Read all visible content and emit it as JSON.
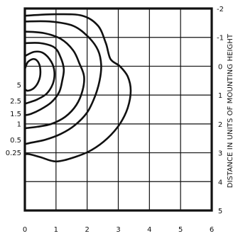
{
  "diagram": {
    "grid": {
      "columns": 6,
      "rows": 7
    },
    "x_axis": {
      "min": 0,
      "max": 6,
      "ticks": [
        {
          "value": 0,
          "label": "0"
        },
        {
          "value": 1,
          "label": "1"
        },
        {
          "value": 2,
          "label": "2"
        },
        {
          "value": 3,
          "label": "3"
        },
        {
          "value": 4,
          "label": "4"
        },
        {
          "value": 5,
          "label": "5"
        },
        {
          "value": 6,
          "label": "6"
        }
      ]
    },
    "y_axis": {
      "title": "DISTANCE IN UNITS OF MOUNTING HEIGHT",
      "min": -2,
      "max": 5,
      "ticks": [
        {
          "value": -2,
          "label": "-2"
        },
        {
          "value": -1,
          "label": "-1"
        },
        {
          "value": 0,
          "label": "0"
        },
        {
          "value": 1,
          "label": "1"
        },
        {
          "value": 2,
          "label": "2"
        },
        {
          "value": 3,
          "label": "3"
        },
        {
          "value": 4,
          "label": "4"
        },
        {
          "value": 5,
          "label": "5"
        }
      ]
    },
    "contours": [
      {
        "label": "5",
        "label_y": 0.65,
        "points": [
          [
            0,
            0.1
          ],
          [
            0.1,
            -0.15
          ],
          [
            0.3,
            -0.25
          ],
          [
            0.45,
            -0.1
          ],
          [
            0.5,
            0.2
          ],
          [
            0.45,
            0.5
          ],
          [
            0.3,
            0.75
          ],
          [
            0.1,
            0.85
          ],
          [
            0,
            0.8
          ]
        ]
      },
      {
        "label": "2.5",
        "label_y": 1.2,
        "points": [
          [
            0,
            -0.35
          ],
          [
            0.3,
            -0.5
          ],
          [
            0.6,
            -0.45
          ],
          [
            0.85,
            -0.15
          ],
          [
            0.95,
            0.2
          ],
          [
            0.9,
            0.6
          ],
          [
            0.7,
            0.95
          ],
          [
            0.4,
            1.15
          ],
          [
            0.15,
            1.25
          ],
          [
            0,
            1.3
          ]
        ]
      },
      {
        "label": "1.5",
        "label_y": 1.65,
        "points": [
          [
            0,
            -0.8
          ],
          [
            0.5,
            -0.8
          ],
          [
            0.95,
            -0.65
          ],
          [
            1.15,
            -0.3
          ],
          [
            1.25,
            0.1
          ],
          [
            1.2,
            0.5
          ],
          [
            1.1,
            0.9
          ],
          [
            0.85,
            1.25
          ],
          [
            0.5,
            1.5
          ],
          [
            0.2,
            1.65
          ],
          [
            0,
            1.7
          ]
        ]
      },
      {
        "label": "1",
        "label_y": 2.0,
        "points": [
          [
            0,
            -1.2
          ],
          [
            0.6,
            -1.15
          ],
          [
            1.15,
            -0.95
          ],
          [
            1.55,
            -0.55
          ],
          [
            1.75,
            -0.1
          ],
          [
            1.9,
            0.35
          ],
          [
            1.85,
            0.85
          ],
          [
            1.65,
            1.35
          ],
          [
            1.3,
            1.75
          ],
          [
            0.85,
            2.0
          ],
          [
            0.4,
            2.1
          ],
          [
            0,
            2.15
          ]
        ]
      },
      {
        "label": "0.5",
        "label_y": 2.55,
        "points": [
          [
            0,
            -1.55
          ],
          [
            0.8,
            -1.55
          ],
          [
            1.55,
            -1.4
          ],
          [
            2.05,
            -1.0
          ],
          [
            2.35,
            -0.55
          ],
          [
            2.45,
            -0.05
          ],
          [
            2.4,
            0.5
          ],
          [
            2.25,
            1.05
          ],
          [
            2.0,
            1.6
          ],
          [
            1.6,
            2.05
          ],
          [
            1.15,
            2.35
          ],
          [
            0.65,
            2.55
          ],
          [
            0.2,
            2.65
          ],
          [
            0,
            2.7
          ]
        ]
      },
      {
        "label": "0.25",
        "label_y": 3.0,
        "points": [
          [
            0,
            -1.75
          ],
          [
            1.0,
            -1.8
          ],
          [
            1.85,
            -1.75
          ],
          [
            2.35,
            -1.4
          ],
          [
            2.6,
            -0.8
          ],
          [
            2.75,
            -0.25
          ],
          [
            3.05,
            0.0
          ],
          [
            3.3,
            0.35
          ],
          [
            3.4,
            0.85
          ],
          [
            3.3,
            1.45
          ],
          [
            3.05,
            2.0
          ],
          [
            2.65,
            2.5
          ],
          [
            2.15,
            2.9
          ],
          [
            1.6,
            3.15
          ],
          [
            1.0,
            3.3
          ],
          [
            0.5,
            3.15
          ],
          [
            0.15,
            3.05
          ],
          [
            0,
            3.05
          ]
        ]
      }
    ]
  }
}
